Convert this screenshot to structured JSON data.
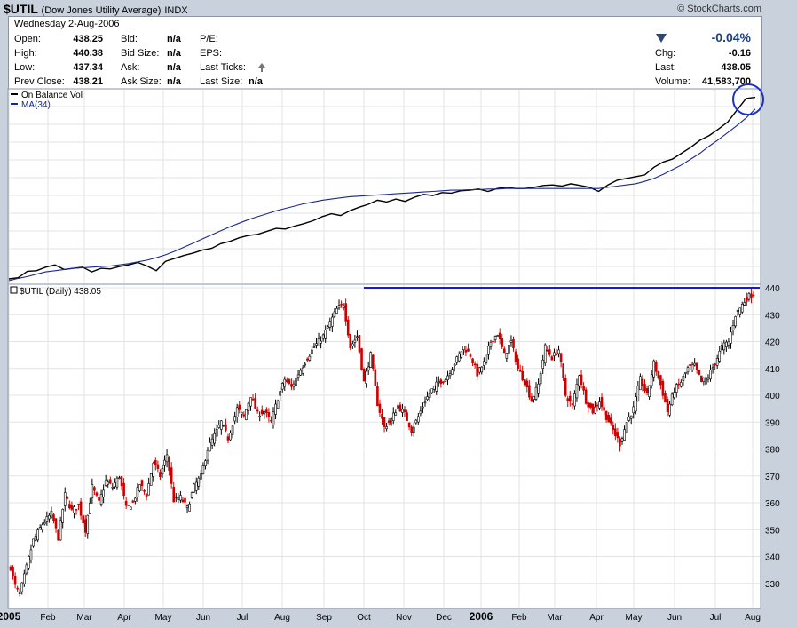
{
  "header": {
    "symbol": "$UTIL",
    "name": "(Dow Jones Utility Average)",
    "exchange": "INDX",
    "brand": "© StockCharts.com"
  },
  "quote": {
    "date": "Wednesday  2-Aug-2006",
    "open_label": "Open:",
    "open": "438.25",
    "high_label": "High:",
    "high": "440.38",
    "low_label": "Low:",
    "low": "437.34",
    "prev_label": "Prev Close:",
    "prev": "438.21",
    "bid_label": "Bid:",
    "bid": "n/a",
    "bidsize_label": "Bid Size:",
    "bidsize": "n/a",
    "ask_label": "Ask:",
    "ask": "n/a",
    "asksize_label": "Ask Size:",
    "asksize": "n/a",
    "pe_label": "P/E:",
    "eps_label": "EPS:",
    "lastticks_label": "Last Ticks:",
    "lastsize_label": "Last Size:",
    "lastsize": "n/a",
    "change_pct": "-0.04%",
    "chg_label": "Chg:",
    "chg": "-0.16",
    "last_label": "Last:",
    "last": "438.05",
    "volume_label": "Volume:",
    "volume": "41,583,700"
  },
  "colors": {
    "up": "#000000",
    "down": "#cc0000",
    "ma": "#1a2a8c",
    "resistance": "#1a1acc",
    "circle": "#1a2fd0",
    "grid": "#e3e3e3"
  },
  "chart_data": [
    {
      "type": "line",
      "panel": "indicator",
      "series": [
        {
          "name": "On Balance Vol",
          "values": [
            0.06,
            0.08,
            0.19,
            0.2,
            0.26,
            0.3,
            0.22,
            0.24,
            0.26,
            0.18,
            0.24,
            0.23,
            0.27,
            0.3,
            0.34,
            0.28,
            0.2,
            0.36,
            0.41,
            0.46,
            0.5,
            0.55,
            0.58,
            0.66,
            0.7,
            0.76,
            0.8,
            0.82,
            0.87,
            0.92,
            0.91,
            0.96,
            1.0,
            1.05,
            1.12,
            1.17,
            1.14,
            1.22,
            1.28,
            1.33,
            1.4,
            1.37,
            1.42,
            1.38,
            1.45,
            1.5,
            1.48,
            1.53,
            1.52,
            1.56,
            1.57,
            1.59,
            1.55,
            1.6,
            1.62,
            1.6,
            1.6,
            1.62,
            1.65,
            1.66,
            1.64,
            1.68,
            1.65,
            1.62,
            1.55,
            1.66,
            1.74,
            1.77,
            1.8,
            1.83,
            1.96,
            2.05,
            2.1,
            2.2,
            2.3,
            2.42,
            2.5,
            2.61,
            2.73,
            2.93,
            3.13,
            3.15
          ]
        },
        {
          "name": "MA(34)",
          "values": [
            0.03,
            0.07,
            0.1,
            0.14,
            0.18,
            0.2,
            0.22,
            0.24,
            0.25,
            0.26,
            0.27,
            0.28,
            0.3,
            0.32,
            0.35,
            0.38,
            0.42,
            0.47,
            0.53,
            0.6,
            0.67,
            0.74,
            0.81,
            0.88,
            0.95,
            1.01,
            1.07,
            1.12,
            1.17,
            1.22,
            1.26,
            1.3,
            1.34,
            1.37,
            1.4,
            1.42,
            1.44,
            1.46,
            1.47,
            1.48,
            1.49,
            1.5,
            1.51,
            1.52,
            1.53,
            1.54,
            1.55,
            1.56,
            1.57,
            1.57,
            1.58,
            1.58,
            1.59,
            1.59,
            1.6,
            1.6,
            1.6,
            1.6,
            1.6,
            1.6,
            1.6,
            1.6,
            1.6,
            1.6,
            1.6,
            1.62,
            1.64,
            1.66,
            1.68,
            1.72,
            1.77,
            1.84,
            1.92,
            2.0,
            2.1,
            2.2,
            2.32,
            2.43,
            2.55,
            2.67,
            2.8,
            2.95
          ]
        }
      ]
    },
    {
      "type": "candlestick",
      "title": "$UTIL (Daily) 438.05",
      "ylim": [
        321,
        441
      ],
      "yticks": [
        330,
        340,
        350,
        360,
        370,
        380,
        390,
        400,
        410,
        420,
        430,
        440
      ],
      "xlabels": [
        "2005",
        "Feb",
        "Mar",
        "Apr",
        "May",
        "Jun",
        "Jul",
        "Aug",
        "Sep",
        "Oct",
        "Nov",
        "Dec",
        "2006",
        "Feb",
        "Mar",
        "Apr",
        "May",
        "Jun",
        "Jul",
        "Aug"
      ],
      "resistance": 440,
      "anchors": [
        [
          0,
          336
        ],
        [
          2,
          329
        ],
        [
          4,
          326
        ],
        [
          10,
          346
        ],
        [
          14,
          352
        ],
        [
          18,
          356
        ],
        [
          21,
          347
        ],
        [
          24,
          363
        ],
        [
          27,
          357
        ],
        [
          30,
          359
        ],
        [
          33,
          350
        ],
        [
          36,
          366
        ],
        [
          39,
          360
        ],
        [
          42,
          368
        ],
        [
          45,
          366
        ],
        [
          48,
          370
        ],
        [
          51,
          358
        ],
        [
          54,
          360
        ],
        [
          57,
          367
        ],
        [
          60,
          363
        ],
        [
          63,
          375
        ],
        [
          66,
          370
        ],
        [
          69,
          378
        ],
        [
          72,
          361
        ],
        [
          75,
          362
        ],
        [
          78,
          358
        ],
        [
          81,
          366
        ],
        [
          84,
          370
        ],
        [
          87,
          380
        ],
        [
          90,
          385
        ],
        [
          93,
          390
        ],
        [
          96,
          384
        ],
        [
          100,
          395
        ],
        [
          103,
          392
        ],
        [
          106,
          400
        ],
        [
          109,
          393
        ],
        [
          112,
          394
        ],
        [
          115,
          390
        ],
        [
          118,
          399
        ],
        [
          121,
          406
        ],
        [
          124,
          403
        ],
        [
          127,
          408
        ],
        [
          131,
          414
        ],
        [
          134,
          418
        ],
        [
          138,
          422
        ],
        [
          141,
          427
        ],
        [
          144,
          432
        ],
        [
          147,
          434
        ],
        [
          150,
          418
        ],
        [
          153,
          422
        ],
        [
          156,
          405
        ],
        [
          159,
          415
        ],
        [
          162,
          397
        ],
        [
          165,
          388
        ],
        [
          168,
          391
        ],
        [
          171,
          396
        ],
        [
          174,
          393
        ],
        [
          177,
          387
        ],
        [
          180,
          392
        ],
        [
          183,
          398
        ],
        [
          186,
          402
        ],
        [
          189,
          405
        ],
        [
          192,
          406
        ],
        [
          196,
          412
        ],
        [
          200,
          418
        ],
        [
          203,
          415
        ],
        [
          206,
          408
        ],
        [
          209,
          412
        ],
        [
          212,
          420
        ],
        [
          215,
          423
        ],
        [
          218,
          415
        ],
        [
          221,
          420
        ],
        [
          224,
          410
        ],
        [
          227,
          405
        ],
        [
          230,
          398
        ],
        [
          233,
          404
        ],
        [
          236,
          418
        ],
        [
          239,
          414
        ],
        [
          242,
          417
        ],
        [
          245,
          400
        ],
        [
          248,
          396
        ],
        [
          251,
          408
        ],
        [
          254,
          398
        ],
        [
          257,
          394
        ],
        [
          260,
          398
        ],
        [
          263,
          392
        ],
        [
          266,
          387
        ],
        [
          269,
          382
        ],
        [
          272,
          390
        ],
        [
          275,
          395
        ],
        [
          278,
          406
        ],
        [
          281,
          400
        ],
        [
          284,
          412
        ],
        [
          287,
          404
        ],
        [
          290,
          394
        ],
        [
          293,
          402
        ],
        [
          296,
          405
        ],
        [
          299,
          410
        ],
        [
          302,
          411
        ],
        [
          305,
          405
        ],
        [
          308,
          407
        ],
        [
          311,
          412
        ],
        [
          314,
          418
        ],
        [
          317,
          420
        ],
        [
          320,
          430
        ],
        [
          324,
          435
        ],
        [
          326,
          437
        ],
        [
          328,
          438
        ]
      ]
    }
  ]
}
